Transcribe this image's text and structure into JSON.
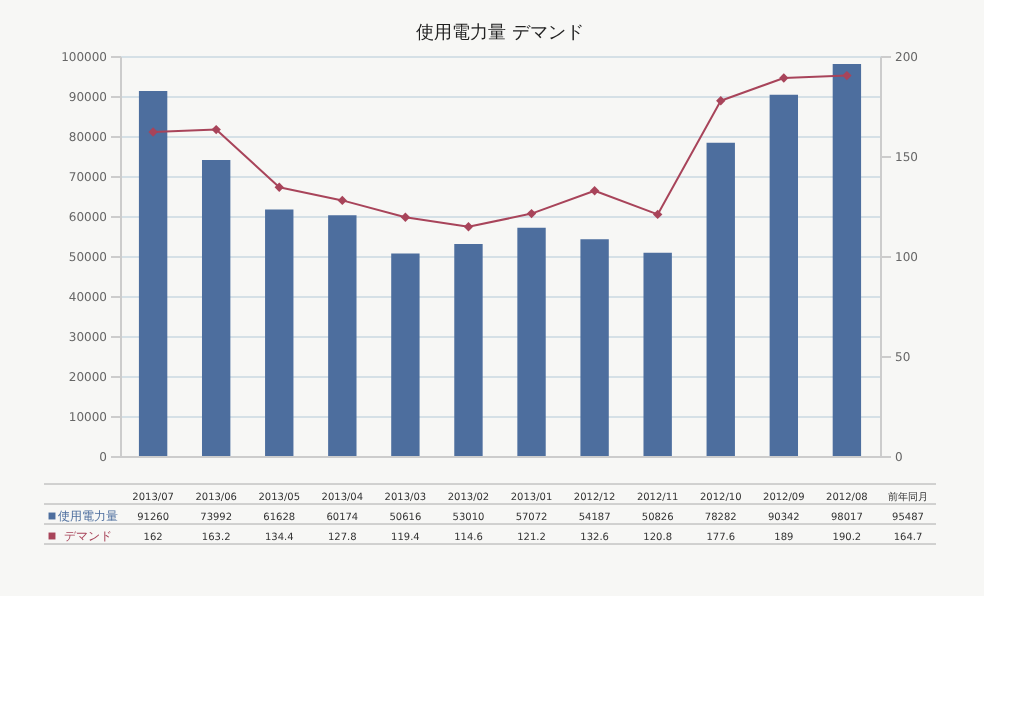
{
  "chart_data": {
    "type": "bar",
    "title": "使用電力量                    デマンド",
    "categories": [
      "2013/07",
      "2013/06",
      "2013/05",
      "2013/04",
      "2013/03",
      "2013/02",
      "2013/01",
      "2012/12",
      "2012/11",
      "2012/10",
      "2012/09",
      "2012/08"
    ],
    "series": [
      {
        "name": "使用電力量",
        "color": "#4d6e9e",
        "values": [
          91260,
          73992,
          61628,
          60174,
          50616,
          53010,
          57072,
          54187,
          50826,
          78282,
          90342,
          98017
        ]
      },
      {
        "name": "デマンド",
        "type": "line",
        "axis": "y2",
        "color": "#a8445a",
        "marker": "diamond",
        "line_style": "solid",
        "values": [
          162,
          163.2,
          134.4,
          127.8,
          119.4,
          114.6,
          121.2,
          132.6,
          120.8,
          177.6,
          189,
          190.2
        ]
      }
    ],
    "ylim": [
      0,
      100000
    ],
    "yticks": [
      0,
      10000,
      20000,
      30000,
      40000,
      50000,
      60000,
      70000,
      80000,
      90000,
      100000
    ],
    "y2lim": [
      0,
      200
    ],
    "y2ticks": [
      0,
      50,
      100,
      150,
      200
    ],
    "grid": "y",
    "legend": "bottom left",
    "data_labels": true,
    "annotations": [
      "前年同月",
      "95487",
      "164.7"
    ]
  }
}
